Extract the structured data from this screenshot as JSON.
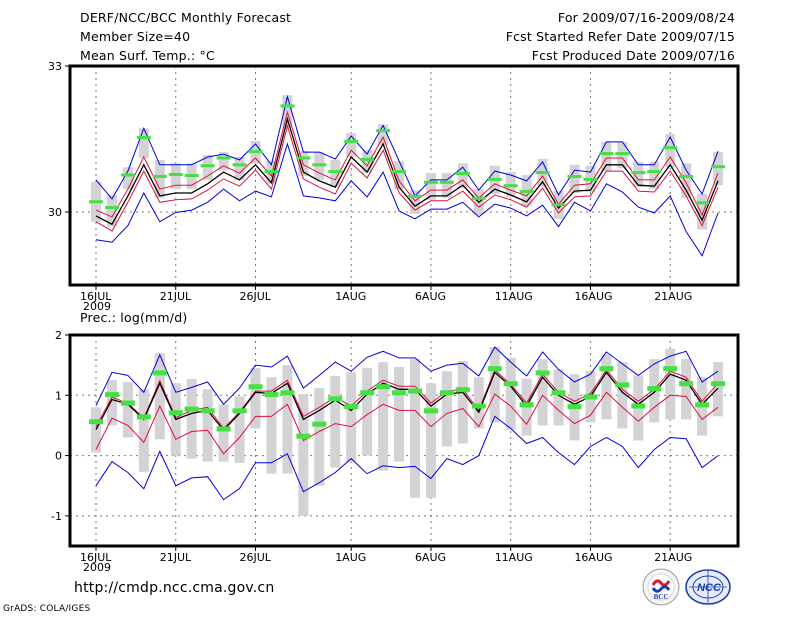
{
  "header": {
    "left": [
      "DERF/NCC/BCC Monthly Forecast",
      "Member Size=40",
      "Mean Surf. Temp.: °C"
    ],
    "right": [
      "For 2009/07/16-2009/08/24",
      "Fcst Started Refer Date 2009/07/15",
      "Fcst Produced Date 2009/07/16"
    ]
  },
  "footer": {
    "url": "http://cmdp.ncc.cma.gov.cn",
    "credit": "GrADS: COLA/IGES",
    "logos": [
      "BCC",
      "NCC"
    ]
  },
  "colors": {
    "spread_bar": "#d3d3d6",
    "ensemble_mean": "#000000",
    "inner_band": "#e0103a",
    "outer_band": "#0000e0",
    "member_marker": "#44e044",
    "grid": "#777777"
  },
  "chart_data": [
    {
      "type": "line",
      "title": "Mean Surf. Temp.: °C",
      "xlabel": "",
      "ylabel": "",
      "ylim": [
        28.5,
        33
      ],
      "yticks": [
        30,
        33
      ],
      "xlim_days": [
        0,
        41
      ],
      "xticks": [
        {
          "day": 0,
          "label": "16JUL",
          "sub": "2009"
        },
        {
          "day": 5,
          "label": "21JUL"
        },
        {
          "day": 10,
          "label": "26JUL"
        },
        {
          "day": 16,
          "label": "1AUG"
        },
        {
          "day": 21,
          "label": "6AUG"
        },
        {
          "day": 26,
          "label": "11AUG"
        },
        {
          "day": 31,
          "label": "16AUG"
        },
        {
          "day": 36,
          "label": "21AUG"
        }
      ],
      "grid": true,
      "series": [
        {
          "name": "green",
          "values": [
            30.2,
            30.08,
            30.75,
            31.52,
            30.72,
            30.76,
            30.74,
            30.94,
            31.1,
            30.96,
            31.23,
            30.82,
            32.17,
            31.1,
            30.96,
            30.82,
            31.44,
            31.07,
            31.66,
            30.82,
            30.31,
            30.6,
            30.6,
            30.78,
            30.27,
            30.66,
            30.53,
            30.41,
            30.8,
            30.14,
            30.72,
            30.66,
            31.19,
            31.19,
            30.8,
            30.82,
            31.31,
            30.72,
            30.18,
            30.92
          ]
        },
        {
          "name": "black",
          "values": [
            29.92,
            29.75,
            30.33,
            30.97,
            30.33,
            30.39,
            30.39,
            30.58,
            30.82,
            30.66,
            30.97,
            30.6,
            31.91,
            30.82,
            30.64,
            30.51,
            31.13,
            30.82,
            31.4,
            30.51,
            30.12,
            30.33,
            30.33,
            30.55,
            30.2,
            30.47,
            30.35,
            30.21,
            30.62,
            30.08,
            30.43,
            30.45,
            30.97,
            30.97,
            30.55,
            30.53,
            30.97,
            30.45,
            29.83,
            30.64
          ]
        },
        {
          "name": "red_upper",
          "values": [
            30.04,
            29.9,
            30.47,
            31.13,
            30.47,
            30.55,
            30.55,
            30.74,
            30.95,
            30.8,
            31.11,
            30.74,
            32.05,
            30.97,
            30.8,
            30.66,
            31.27,
            30.95,
            31.54,
            30.64,
            30.23,
            30.45,
            30.45,
            30.66,
            30.29,
            30.58,
            30.45,
            30.33,
            30.74,
            30.16,
            30.55,
            30.58,
            31.11,
            31.11,
            30.66,
            30.66,
            31.13,
            30.6,
            29.94,
            30.8
          ]
        },
        {
          "name": "red_lower",
          "values": [
            29.8,
            29.61,
            30.2,
            30.84,
            30.2,
            30.25,
            30.27,
            30.45,
            30.68,
            30.53,
            30.86,
            30.47,
            31.77,
            30.68,
            30.51,
            30.37,
            31.0,
            30.7,
            31.27,
            30.39,
            30.04,
            30.23,
            30.23,
            30.43,
            30.1,
            30.35,
            30.25,
            30.1,
            30.49,
            29.98,
            30.31,
            30.33,
            30.84,
            30.84,
            30.43,
            30.41,
            30.84,
            30.33,
            29.72,
            30.51
          ]
        },
        {
          "name": "blue_upper",
          "values": [
            30.66,
            30.27,
            30.84,
            31.72,
            30.97,
            30.97,
            30.97,
            31.13,
            31.19,
            31.07,
            31.4,
            30.97,
            32.37,
            31.23,
            31.23,
            31.09,
            31.56,
            31.19,
            31.78,
            31.05,
            30.33,
            30.66,
            30.66,
            30.92,
            30.45,
            30.84,
            30.76,
            30.64,
            31.03,
            30.35,
            30.86,
            30.82,
            31.44,
            31.44,
            30.97,
            30.97,
            31.54,
            30.86,
            30.37,
            31.25
          ]
        },
        {
          "name": "blue_lower",
          "values": [
            29.43,
            29.38,
            29.72,
            30.39,
            29.8,
            29.99,
            30.04,
            30.2,
            30.47,
            30.23,
            30.43,
            30.31,
            31.4,
            30.33,
            30.29,
            30.23,
            30.64,
            30.31,
            30.82,
            30.02,
            29.86,
            30.06,
            30.06,
            30.2,
            29.9,
            30.16,
            30.08,
            29.92,
            30.14,
            29.7,
            30.2,
            30.02,
            30.58,
            30.41,
            30.1,
            29.98,
            30.33,
            29.6,
            29.1,
            29.98
          ]
        },
        {
          "name": "spread_high",
          "values": [
            30.62,
            30.35,
            30.92,
            31.72,
            31.07,
            31.0,
            31.0,
            31.17,
            31.23,
            31.13,
            31.46,
            31.05,
            32.4,
            31.25,
            31.23,
            31.07,
            31.62,
            31.27,
            31.8,
            31.05,
            30.45,
            30.8,
            30.8,
            31.0,
            30.47,
            30.95,
            30.82,
            30.76,
            31.09,
            30.43,
            30.97,
            30.95,
            31.44,
            31.44,
            31.03,
            31.03,
            31.6,
            31.0,
            30.37,
            31.23
          ]
        },
        {
          "name": "spread_low",
          "values": [
            29.8,
            29.7,
            30.47,
            31.11,
            30.29,
            30.47,
            30.47,
            30.66,
            30.86,
            30.66,
            30.99,
            30.58,
            31.74,
            30.74,
            30.66,
            30.51,
            31.13,
            30.8,
            31.38,
            30.47,
            29.96,
            30.25,
            30.29,
            30.49,
            29.94,
            30.37,
            30.31,
            30.12,
            30.53,
            29.86,
            30.39,
            30.41,
            30.84,
            30.9,
            30.51,
            30.47,
            30.92,
            30.29,
            29.64,
            30.55
          ]
        }
      ]
    },
    {
      "type": "line",
      "title": "Prec.: log(mm/d)",
      "xlabel": "",
      "ylabel": "",
      "ylim": [
        -1.5,
        2
      ],
      "yticks": [
        -1,
        0,
        1,
        2
      ],
      "xlim_days": [
        0,
        41
      ],
      "xticks": [
        {
          "day": 0,
          "label": "16JUL",
          "sub": "2009"
        },
        {
          "day": 5,
          "label": "21JUL"
        },
        {
          "day": 10,
          "label": "26JUL"
        },
        {
          "day": 16,
          "label": "1AUG"
        },
        {
          "day": 21,
          "label": "6AUG"
        },
        {
          "day": 26,
          "label": "11AUG"
        },
        {
          "day": 31,
          "label": "16AUG"
        },
        {
          "day": 36,
          "label": "21AUG"
        }
      ],
      "grid": true,
      "series": [
        {
          "name": "green",
          "values": [
            0.57,
            1.02,
            0.88,
            0.65,
            1.38,
            0.72,
            0.78,
            0.75,
            0.45,
            0.75,
            1.15,
            1.02,
            1.05,
            0.33,
            0.53,
            0.95,
            0.82,
            1.05,
            1.15,
            1.05,
            1.08,
            0.75,
            1.05,
            1.1,
            0.83,
            1.45,
            1.2,
            0.85,
            1.38,
            1.05,
            0.82,
            0.98,
            1.45,
            1.18,
            0.83,
            1.12,
            1.45,
            1.2,
            0.85,
            1.2
          ]
        },
        {
          "name": "black",
          "values": [
            0.43,
            0.93,
            0.85,
            0.6,
            1.2,
            0.6,
            0.7,
            0.75,
            0.42,
            0.7,
            1.05,
            1.03,
            1.2,
            0.6,
            0.75,
            0.92,
            0.75,
            1.02,
            1.2,
            1.1,
            1.1,
            0.82,
            1.02,
            1.05,
            0.72,
            1.38,
            1.15,
            0.82,
            1.3,
            1.0,
            0.85,
            0.98,
            1.38,
            1.05,
            0.85,
            1.05,
            1.35,
            1.25,
            0.85,
            1.12
          ]
        },
        {
          "name": "red_upper",
          "values": [
            0.48,
            0.97,
            0.87,
            0.62,
            1.24,
            0.63,
            0.75,
            0.8,
            0.45,
            0.72,
            1.07,
            1.07,
            1.25,
            0.65,
            0.8,
            0.97,
            0.82,
            1.07,
            1.25,
            1.15,
            1.15,
            0.87,
            1.07,
            1.1,
            0.75,
            1.42,
            1.18,
            0.87,
            1.35,
            1.05,
            0.9,
            1.03,
            1.42,
            1.1,
            0.9,
            1.1,
            1.4,
            1.3,
            0.9,
            1.2
          ]
        },
        {
          "name": "red_lower",
          "values": [
            0.1,
            0.62,
            0.5,
            0.22,
            0.82,
            0.27,
            0.4,
            0.42,
            0.03,
            0.3,
            0.65,
            0.65,
            0.85,
            0.25,
            0.4,
            0.53,
            0.48,
            0.68,
            0.85,
            0.75,
            0.75,
            0.48,
            0.7,
            0.78,
            0.48,
            1.02,
            0.82,
            0.52,
            1.0,
            0.75,
            0.53,
            0.67,
            1.05,
            0.8,
            0.57,
            0.8,
            1.0,
            0.98,
            0.6,
            0.8
          ]
        },
        {
          "name": "blue_upper",
          "values": [
            0.83,
            1.38,
            1.33,
            1.05,
            1.67,
            1.05,
            1.13,
            1.22,
            0.85,
            1.12,
            1.5,
            1.47,
            1.65,
            1.12,
            1.33,
            1.55,
            1.4,
            1.63,
            1.73,
            1.62,
            1.62,
            1.4,
            1.5,
            1.53,
            1.32,
            1.8,
            1.55,
            1.32,
            1.72,
            1.43,
            1.22,
            1.35,
            1.72,
            1.52,
            1.33,
            1.52,
            1.65,
            1.73,
            1.22,
            1.4
          ]
        },
        {
          "name": "blue_lower",
          "values": [
            -0.5,
            -0.1,
            -0.28,
            -0.55,
            0.07,
            -0.5,
            -0.37,
            -0.35,
            -0.73,
            -0.55,
            -0.12,
            -0.12,
            0.03,
            -0.6,
            -0.45,
            -0.28,
            -0.05,
            -0.3,
            -0.17,
            -0.2,
            -0.18,
            -0.38,
            -0.05,
            -0.15,
            0.0,
            0.65,
            0.45,
            0.2,
            0.3,
            0.05,
            -0.15,
            0.15,
            0.3,
            0.15,
            -0.2,
            0.1,
            0.3,
            0.28,
            -0.2,
            0.0
          ]
        },
        {
          "name": "spread_high",
          "values": [
            0.8,
            1.25,
            1.22,
            1.1,
            1.7,
            1.2,
            1.27,
            1.1,
            0.85,
            0.98,
            1.45,
            1.3,
            1.5,
            1.02,
            1.12,
            1.32,
            1.38,
            1.45,
            1.55,
            1.47,
            1.6,
            1.2,
            1.4,
            1.57,
            1.3,
            1.8,
            1.62,
            1.28,
            1.6,
            1.43,
            1.35,
            1.4,
            1.68,
            1.55,
            1.33,
            1.6,
            1.77,
            1.6,
            1.3,
            1.55
          ]
        },
        {
          "name": "spread_low",
          "values": [
            0.05,
            0.5,
            0.3,
            -0.27,
            0.27,
            0.0,
            -0.05,
            -0.1,
            -0.1,
            -0.12,
            0.45,
            -0.3,
            -0.3,
            -1.0,
            -0.5,
            -0.2,
            -0.1,
            0.0,
            -0.25,
            -0.1,
            -0.7,
            -0.7,
            0.15,
            0.2,
            0.45,
            0.55,
            0.43,
            0.33,
            0.5,
            0.5,
            0.25,
            0.55,
            0.6,
            0.45,
            0.25,
            0.55,
            0.6,
            0.6,
            0.33,
            0.65
          ]
        }
      ]
    }
  ]
}
